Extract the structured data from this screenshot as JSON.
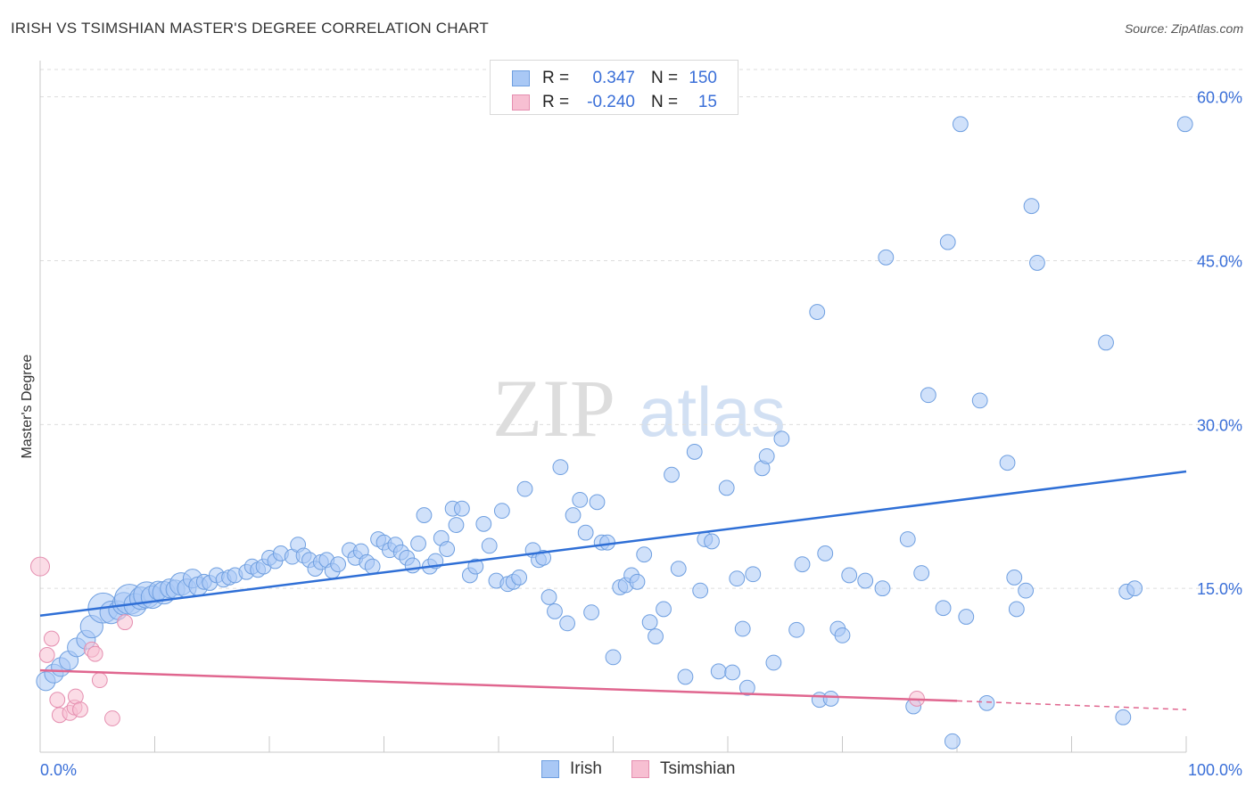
{
  "title": "IRISH VS TSIMSHIAN MASTER'S DEGREE CORRELATION CHART",
  "source": "Source: ZipAtlas.com",
  "watermark": {
    "zip": "ZIP",
    "atlas": "atlas"
  },
  "colors": {
    "irish_fill": "#a9c8f5",
    "irish_stroke": "#6f9fe0",
    "irish_line": "#2f6fd6",
    "tsim_fill": "#f7bfd2",
    "tsim_stroke": "#e58fb0",
    "tsim_line": "#e0668f",
    "axis_text": "#3a6fd8",
    "grid": "#dddddd"
  },
  "legend_top": {
    "rows": [
      {
        "series": "Irish",
        "r_label": "R =",
        "r_value": "0.347",
        "n_label": "N =",
        "n_value": "150"
      },
      {
        "series": "Tsimshian",
        "r_label": "R =",
        "r_value": "-0.240",
        "n_label": "N =",
        "n_value": "15"
      }
    ]
  },
  "legend_bottom": {
    "items": [
      "Irish",
      "Tsimshian"
    ]
  },
  "chart_data": {
    "type": "scatter",
    "title": "IRISH VS TSIMSHIAN MASTER'S DEGREE CORRELATION CHART",
    "xlabel": "",
    "ylabel": "Master's Degree",
    "xlim": [
      0,
      100
    ],
    "ylim": [
      0,
      62.5
    ],
    "x_tick_labels": [
      {
        "value": 0,
        "label": "0.0%"
      },
      {
        "value": 100,
        "label": "100.0%"
      }
    ],
    "y_ticks": [
      {
        "value": 15,
        "label": "15.0%"
      },
      {
        "value": 30,
        "label": "30.0%"
      },
      {
        "value": 45,
        "label": "45.0%"
      },
      {
        "value": 60,
        "label": "60.0%"
      }
    ],
    "grid": "horizontal-dashed",
    "legend": "top-center",
    "series": [
      {
        "name": "Irish",
        "trend": {
          "x0": 0,
          "y0": 12.5,
          "x1": 100,
          "y1": 25.7
        },
        "points": [
          [
            0.5,
            6.5,
            5
          ],
          [
            1.2,
            7.2,
            5
          ],
          [
            1.8,
            7.8,
            5
          ],
          [
            2.5,
            8.4,
            5
          ],
          [
            3.2,
            9.6,
            5
          ],
          [
            4.0,
            10.3,
            5
          ],
          [
            4.5,
            11.5,
            6
          ],
          [
            5.5,
            13.2,
            8
          ],
          [
            6.2,
            12.8,
            6
          ],
          [
            6.8,
            13.0,
            5
          ],
          [
            7.3,
            13.6,
            6
          ],
          [
            7.8,
            14.0,
            8
          ],
          [
            8.3,
            13.5,
            6
          ],
          [
            8.8,
            14.1,
            6
          ],
          [
            9.3,
            14.4,
            7
          ],
          [
            9.8,
            14.2,
            6
          ],
          [
            10.3,
            14.8,
            5
          ],
          [
            10.8,
            14.6,
            6
          ],
          [
            11.3,
            15.0,
            5
          ],
          [
            11.8,
            14.9,
            5
          ],
          [
            12.3,
            15.4,
            6
          ],
          [
            12.8,
            15.0,
            5
          ],
          [
            13.3,
            15.9,
            5
          ],
          [
            13.8,
            15.2,
            5
          ],
          [
            14.3,
            15.6,
            4
          ],
          [
            14.8,
            15.5,
            4
          ],
          [
            15.4,
            16.2,
            4
          ],
          [
            16.0,
            15.8,
            4
          ],
          [
            16.5,
            16.0,
            4
          ],
          [
            17.0,
            16.2,
            4
          ],
          [
            18.0,
            16.5,
            4
          ],
          [
            18.5,
            17.0,
            4
          ],
          [
            19.0,
            16.7,
            4
          ],
          [
            19.5,
            17.0,
            4
          ],
          [
            20.0,
            17.8,
            4
          ],
          [
            20.5,
            17.5,
            4
          ],
          [
            21.0,
            18.2,
            4
          ],
          [
            22.0,
            17.9,
            4
          ],
          [
            22.5,
            19.0,
            4
          ],
          [
            23.0,
            18.0,
            4
          ],
          [
            23.5,
            17.6,
            4
          ],
          [
            24.0,
            16.8,
            4
          ],
          [
            24.5,
            17.4,
            4
          ],
          [
            25.0,
            17.6,
            4
          ],
          [
            25.5,
            16.6,
            4
          ],
          [
            26.0,
            17.2,
            4
          ],
          [
            27.0,
            18.5,
            4
          ],
          [
            27.5,
            17.8,
            4
          ],
          [
            28.0,
            18.4,
            4
          ],
          [
            28.5,
            17.4,
            4
          ],
          [
            29.0,
            17.0,
            4
          ],
          [
            29.5,
            19.5,
            4
          ],
          [
            30.0,
            19.2,
            4
          ],
          [
            30.5,
            18.5,
            4
          ],
          [
            31.0,
            19.0,
            4
          ],
          [
            31.5,
            18.3,
            4
          ],
          [
            32.0,
            17.8,
            4
          ],
          [
            32.5,
            17.1,
            4
          ],
          [
            33.0,
            19.1,
            4
          ],
          [
            33.5,
            21.7,
            4
          ],
          [
            34.0,
            17.0,
            4
          ],
          [
            34.5,
            17.5,
            4
          ],
          [
            35.0,
            19.6,
            4
          ],
          [
            35.5,
            18.6,
            4
          ],
          [
            36.0,
            22.3,
            4
          ],
          [
            36.3,
            20.8,
            4
          ],
          [
            36.8,
            22.3,
            4
          ],
          [
            37.5,
            16.2,
            4
          ],
          [
            38.0,
            17.0,
            4
          ],
          [
            38.7,
            20.9,
            4
          ],
          [
            39.2,
            18.9,
            4
          ],
          [
            39.8,
            15.7,
            4
          ],
          [
            40.3,
            22.1,
            4
          ],
          [
            40.8,
            15.4,
            4
          ],
          [
            41.3,
            15.6,
            4
          ],
          [
            41.8,
            16.0,
            4
          ],
          [
            42.3,
            24.1,
            4
          ],
          [
            43.0,
            18.5,
            4
          ],
          [
            43.5,
            17.6,
            4
          ],
          [
            43.9,
            17.8,
            4
          ],
          [
            44.4,
            14.2,
            4
          ],
          [
            44.9,
            12.9,
            4
          ],
          [
            45.4,
            26.1,
            4
          ],
          [
            46.0,
            11.8,
            4
          ],
          [
            46.5,
            21.7,
            4
          ],
          [
            47.1,
            23.1,
            4
          ],
          [
            47.6,
            20.1,
            4
          ],
          [
            48.1,
            12.8,
            4
          ],
          [
            48.6,
            22.9,
            4
          ],
          [
            49.0,
            19.2,
            4
          ],
          [
            49.5,
            19.2,
            4
          ],
          [
            50.0,
            8.7,
            4
          ],
          [
            50.6,
            15.1,
            4
          ],
          [
            51.1,
            15.3,
            4
          ],
          [
            51.6,
            16.2,
            4
          ],
          [
            52.1,
            15.6,
            4
          ],
          [
            52.7,
            18.1,
            4
          ],
          [
            53.2,
            11.9,
            4
          ],
          [
            53.7,
            10.6,
            4
          ],
          [
            54.4,
            13.1,
            4
          ],
          [
            55.1,
            25.4,
            4
          ],
          [
            55.7,
            16.8,
            4
          ],
          [
            56.3,
            6.9,
            4
          ],
          [
            57.1,
            27.5,
            4
          ],
          [
            57.6,
            14.8,
            4
          ],
          [
            58.0,
            19.5,
            4
          ],
          [
            58.6,
            19.3,
            4
          ],
          [
            59.2,
            7.4,
            4
          ],
          [
            59.9,
            24.2,
            4
          ],
          [
            60.4,
            7.3,
            4
          ],
          [
            60.8,
            15.9,
            4
          ],
          [
            61.3,
            11.3,
            4
          ],
          [
            61.7,
            5.9,
            4
          ],
          [
            62.2,
            16.3,
            4
          ],
          [
            63.0,
            26.0,
            4
          ],
          [
            63.4,
            27.1,
            4
          ],
          [
            64.0,
            8.2,
            4
          ],
          [
            64.7,
            28.7,
            4
          ],
          [
            66.0,
            11.2,
            4
          ],
          [
            66.5,
            17.2,
            4
          ],
          [
            67.8,
            40.3,
            4
          ],
          [
            68.0,
            4.8,
            4
          ],
          [
            68.5,
            18.2,
            4
          ],
          [
            69.0,
            4.9,
            4
          ],
          [
            69.6,
            11.3,
            4
          ],
          [
            70.0,
            10.7,
            4
          ],
          [
            70.6,
            16.2,
            4
          ],
          [
            72.0,
            15.7,
            4
          ],
          [
            73.5,
            15.0,
            4
          ],
          [
            73.8,
            45.3,
            4
          ],
          [
            75.7,
            19.5,
            4
          ],
          [
            76.2,
            4.2,
            4
          ],
          [
            76.9,
            16.4,
            4
          ],
          [
            77.5,
            32.7,
            4
          ],
          [
            78.8,
            13.2,
            4
          ],
          [
            79.2,
            46.7,
            4
          ],
          [
            79.6,
            1.0,
            4
          ],
          [
            80.3,
            57.5,
            4
          ],
          [
            80.8,
            12.4,
            4
          ],
          [
            82.0,
            32.2,
            4
          ],
          [
            82.6,
            4.5,
            4
          ],
          [
            84.4,
            26.5,
            4
          ],
          [
            85.0,
            16.0,
            4
          ],
          [
            85.2,
            13.1,
            4
          ],
          [
            86.0,
            14.8,
            4
          ],
          [
            86.5,
            50.0,
            4
          ],
          [
            87.0,
            44.8,
            4
          ],
          [
            93.0,
            37.5,
            4
          ],
          [
            94.5,
            3.2,
            4
          ],
          [
            94.8,
            14.7,
            4
          ],
          [
            95.5,
            15.0,
            4
          ],
          [
            99.9,
            57.5,
            4
          ]
        ]
      },
      {
        "name": "Tsimshian",
        "trend": {
          "x0": 0,
          "y0": 7.5,
          "x1": 80,
          "y1": 4.7,
          "dash_to_x": 100,
          "dash_to_y": 3.9
        },
        "points": [
          [
            0.0,
            17.0,
            5
          ],
          [
            0.6,
            8.9,
            4
          ],
          [
            1.0,
            10.4,
            4
          ],
          [
            1.5,
            4.8,
            4
          ],
          [
            1.7,
            3.4,
            4
          ],
          [
            2.6,
            3.6,
            4
          ],
          [
            3.0,
            4.1,
            4
          ],
          [
            3.1,
            5.1,
            4
          ],
          [
            3.5,
            3.9,
            4
          ],
          [
            4.5,
            9.4,
            4
          ],
          [
            4.8,
            9.0,
            4
          ],
          [
            5.2,
            6.6,
            4
          ],
          [
            6.3,
            3.1,
            4
          ],
          [
            7.4,
            11.9,
            4
          ],
          [
            76.5,
            4.9,
            4
          ]
        ]
      }
    ]
  }
}
